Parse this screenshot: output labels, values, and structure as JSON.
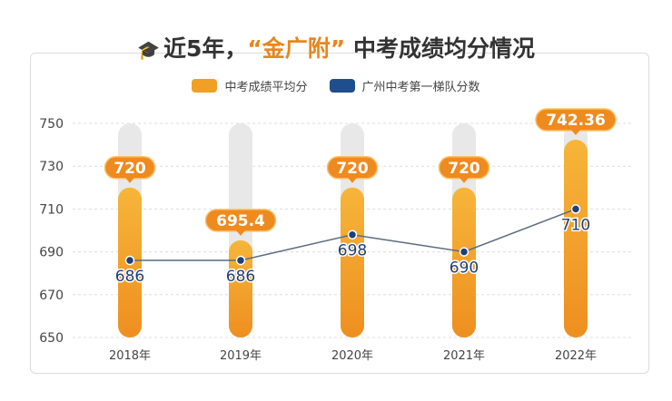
{
  "header": {
    "title_prefix": "近5年，",
    "title_highlight": "“金广附”",
    "title_suffix": " 中考成绩均分情况",
    "icon": "graduation-cap-icon"
  },
  "colors": {
    "bar": "#f0a025",
    "label": "#ef8a1e",
    "line": "#5a6b80",
    "point": "#1f3f78",
    "track": "#e8e8e8"
  },
  "chart_data": {
    "type": "bar",
    "title": "近5年，“金广附”中考成绩均分情况",
    "categories": [
      "2018年",
      "2019年",
      "2020年",
      "2021年",
      "2022年"
    ],
    "ylim": [
      650,
      750
    ],
    "yticks": [
      650,
      670,
      690,
      710,
      730,
      750
    ],
    "grid": true,
    "legend_position": "top",
    "series": [
      {
        "name": "中考成绩平均分",
        "type": "bar",
        "values": [
          720,
          695.4,
          720,
          720,
          742.36
        ],
        "labels": [
          "720",
          "695.4",
          "720",
          "720",
          "742.36"
        ],
        "color": "#f0a025"
      },
      {
        "name": "广州中考第一梯队分数",
        "type": "line",
        "values": [
          686,
          686,
          698,
          690,
          710
        ],
        "labels": [
          "686",
          "686",
          "698",
          "690",
          "710"
        ],
        "color": "#1f4e8c"
      }
    ]
  }
}
